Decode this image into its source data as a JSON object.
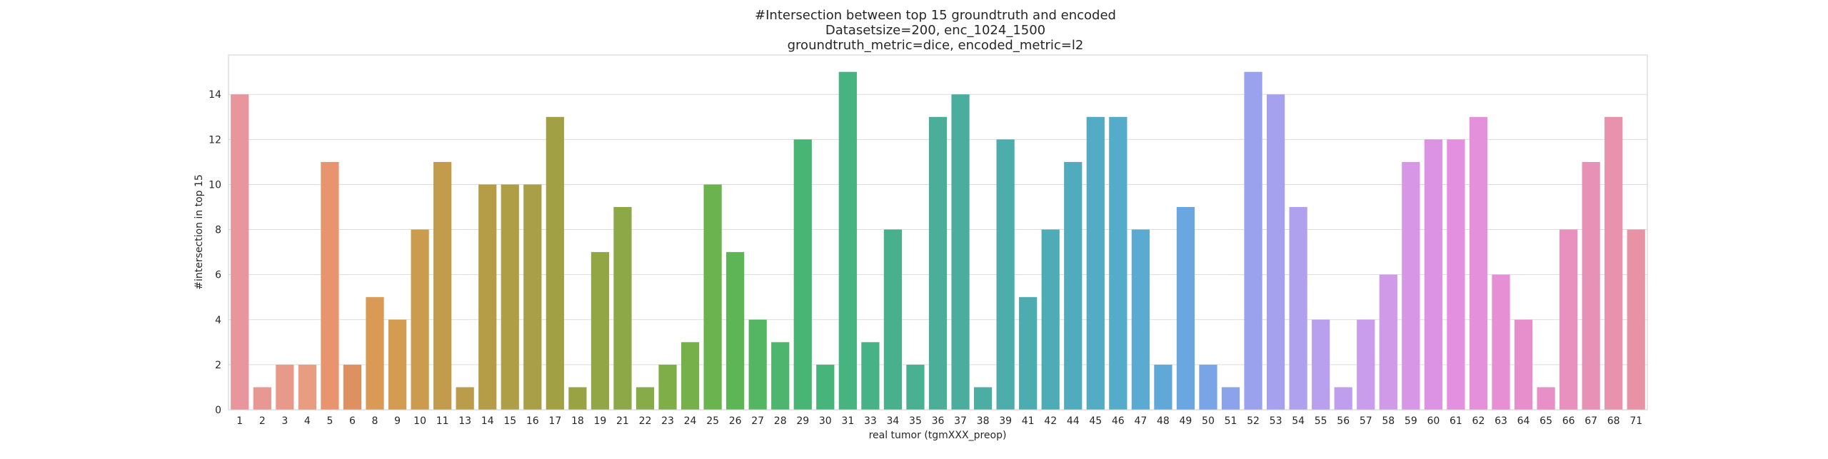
{
  "chart_data": {
    "type": "bar",
    "title_lines": [
      "#Intersection between top 15 groundtruth and encoded",
      "Datasetsize=200, enc_1024_1500",
      "groundtruth_metric=dice, encoded_metric=l2"
    ],
    "xlabel": "real tumor (tgmXXX_preop)",
    "ylabel": "#intersection in top 15",
    "ylim": [
      0,
      15.75
    ],
    "yticks": [
      0,
      2,
      4,
      6,
      8,
      10,
      12,
      14
    ],
    "grid": true,
    "categories": [
      "1",
      "2",
      "3",
      "4",
      "5",
      "6",
      "8",
      "9",
      "10",
      "11",
      "13",
      "14",
      "15",
      "16",
      "17",
      "18",
      "19",
      "21",
      "22",
      "23",
      "24",
      "25",
      "26",
      "27",
      "28",
      "29",
      "30",
      "31",
      "33",
      "34",
      "35",
      "36",
      "37",
      "38",
      "39",
      "41",
      "42",
      "44",
      "45",
      "46",
      "47",
      "48",
      "49",
      "50",
      "51",
      "52",
      "53",
      "54",
      "55",
      "56",
      "57",
      "58",
      "59",
      "60",
      "61",
      "62",
      "63",
      "64",
      "65",
      "66",
      "67",
      "68",
      "71"
    ],
    "values": [
      14,
      1,
      2,
      2,
      11,
      2,
      5,
      4,
      8,
      11,
      1,
      10,
      10,
      10,
      13,
      1,
      7,
      9,
      1,
      2,
      3,
      10,
      7,
      4,
      3,
      12,
      2,
      15,
      3,
      8,
      2,
      13,
      14,
      1,
      12,
      5,
      8,
      11,
      13,
      13,
      8,
      2,
      9,
      2,
      1,
      15,
      14,
      9,
      4,
      1,
      4,
      6,
      11,
      12,
      12,
      13,
      6,
      4,
      1,
      8,
      11,
      13,
      8
    ],
    "colors": [
      "#e8959b",
      "#e89893",
      "#e89a8a",
      "#e89d81",
      "#e8956f",
      "#df9060",
      "#d89a55",
      "#d49c50",
      "#cb9c4e",
      "#c39b4c",
      "#bb9c4a",
      "#b59d48",
      "#ae9e46",
      "#a89f46",
      "#a2a044",
      "#9aa344",
      "#93a645",
      "#8da846",
      "#86ab48",
      "#7fae49",
      "#76b04b",
      "#6bb34f",
      "#5eb556",
      "#54b663",
      "#4db56d",
      "#48b574",
      "#47b47b",
      "#47b381",
      "#48b287",
      "#49b08d",
      "#4ab092",
      "#4aae98",
      "#4bad9e",
      "#4cada3",
      "#4cadaa",
      "#4dacb0",
      "#4eacb6",
      "#50acbd",
      "#53abc4",
      "#55abca",
      "#5aaad1",
      "#60a8d8",
      "#6aa6e0",
      "#79a4e6",
      "#8aa3eb",
      "#9aa2ee",
      "#a5a1ee",
      "#b0a1ef",
      "#b9a0ee",
      "#c09eee",
      "#c99deb",
      "#d19ae9",
      "#d896e6",
      "#dd93e3",
      "#e290df",
      "#e590da",
      "#e68fd4",
      "#e78fcd",
      "#e78fc6",
      "#e890be",
      "#e891b6",
      "#e892ad",
      "#e893a5"
    ]
  }
}
